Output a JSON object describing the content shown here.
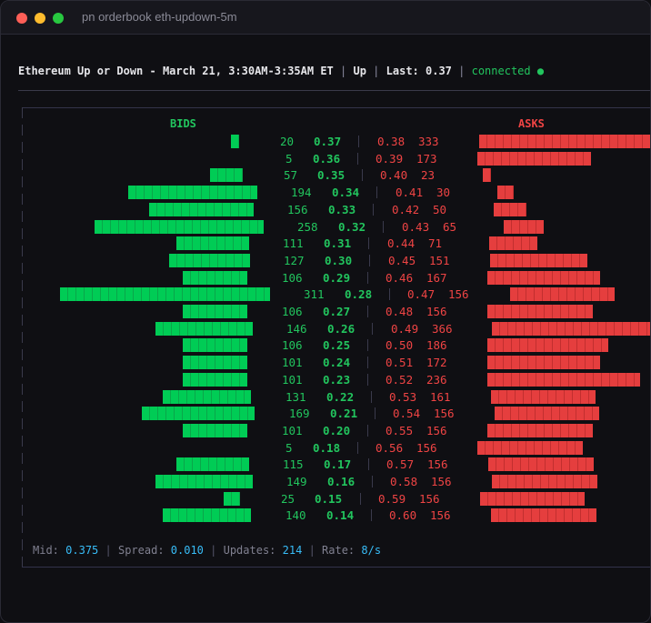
{
  "window": {
    "title": "pn orderbook eth-updown-5m",
    "controls": [
      "close",
      "minimize",
      "maximize"
    ]
  },
  "header": {
    "market": "Ethereum Up or Down - March 21, 3:30AM-3:35AM ET",
    "outcome": "Up",
    "last_label": "Last:",
    "last_value": "0.37",
    "status": "connected",
    "status_icon": "●"
  },
  "book": {
    "bids_label": "BIDS",
    "asks_label": "ASKS",
    "colors": {
      "bid": "#00cc55",
      "ask": "#e53e3e"
    },
    "rows": [
      {
        "bid_size": "20",
        "bid_price": "0.37",
        "ask_price": "0.38",
        "ask_size": "333",
        "bid_bar": [
          253,
          262
        ],
        "ask_bar": [
          526,
          715
        ],
        "bsx": 307,
        "bpx": 344,
        "pipe": 393,
        "apx": 414,
        "asx": 459
      },
      {
        "bid_size": "5",
        "bid_price": "0.36",
        "ask_price": "0.39",
        "ask_size": "173",
        "bid_bar": null,
        "ask_bar": [
          524,
          649
        ],
        "bsx": 313,
        "bpx": 343,
        "pipe": 392,
        "apx": 412,
        "asx": 457
      },
      {
        "bid_size": "57",
        "bid_price": "0.35",
        "ask_price": "0.40",
        "ask_size": "23",
        "bid_bar": [
          230,
          266
        ],
        "ask_bar": [
          530,
          539
        ],
        "bsx": 311,
        "bpx": 348,
        "pipe": 397,
        "apx": 417,
        "asx": 462
      },
      {
        "bid_size": "194",
        "bid_price": "0.34",
        "ask_price": "0.41",
        "ask_size": "30",
        "bid_bar": [
          140,
          282
        ],
        "ask_bar": [
          546,
          564
        ],
        "bsx": 319,
        "bpx": 364,
        "pipe": 413,
        "apx": 434,
        "asx": 479
      },
      {
        "bid_size": "156",
        "bid_price": "0.33",
        "ask_price": "0.42",
        "ask_size": "50",
        "bid_bar": [
          163,
          278
        ],
        "ask_bar": [
          542,
          578
        ],
        "bsx": 315,
        "bpx": 360,
        "pipe": 409,
        "apx": 430,
        "asx": 475
      },
      {
        "bid_size": "258",
        "bid_price": "0.32",
        "ask_price": "0.43",
        "ask_size": "65",
        "bid_bar": [
          103,
          289
        ],
        "ask_bar": [
          553,
          597
        ],
        "bsx": 326,
        "bpx": 371,
        "pipe": 420,
        "apx": 441,
        "asx": 486
      },
      {
        "bid_size": "111",
        "bid_price": "0.31",
        "ask_price": "0.44",
        "ask_size": "71",
        "bid_bar": [
          193,
          273
        ],
        "ask_bar": [
          537,
          590
        ],
        "bsx": 310,
        "bpx": 355,
        "pipe": 404,
        "apx": 425,
        "asx": 470
      },
      {
        "bid_size": "127",
        "bid_price": "0.30",
        "ask_price": "0.45",
        "ask_size": "151",
        "bid_bar": [
          185,
          274
        ],
        "ask_bar": [
          538,
          645
        ],
        "bsx": 311,
        "bpx": 356,
        "pipe": 405,
        "apx": 426,
        "asx": 471
      },
      {
        "bid_size": "106",
        "bid_price": "0.29",
        "ask_price": "0.46",
        "ask_size": "167",
        "bid_bar": [
          200,
          271
        ],
        "ask_bar": [
          535,
          659
        ],
        "bsx": 309,
        "bpx": 354,
        "pipe": 403,
        "apx": 423,
        "asx": 468
      },
      {
        "bid_size": "311",
        "bid_price": "0.28",
        "ask_price": "0.47",
        "ask_size": "156",
        "bid_bar": [
          65,
          296
        ],
        "ask_bar": [
          560,
          675
        ],
        "bsx": 333,
        "bpx": 378,
        "pipe": 427,
        "apx": 447,
        "asx": 492
      },
      {
        "bid_size": "106",
        "bid_price": "0.27",
        "ask_price": "0.48",
        "ask_size": "156",
        "bid_bar": [
          200,
          271
        ],
        "ask_bar": [
          535,
          651
        ],
        "bsx": 309,
        "bpx": 354,
        "pipe": 403,
        "apx": 423,
        "asx": 468
      },
      {
        "bid_size": "146",
        "bid_price": "0.26",
        "ask_price": "0.49",
        "ask_size": "366",
        "bid_bar": [
          170,
          277
        ],
        "ask_bar": [
          540,
          715
        ],
        "bsx": 314,
        "bpx": 359,
        "pipe": 408,
        "apx": 429,
        "asx": 474
      },
      {
        "bid_size": "106",
        "bid_price": "0.25",
        "ask_price": "0.50",
        "ask_size": "186",
        "bid_bar": [
          200,
          271
        ],
        "ask_bar": [
          535,
          668
        ],
        "bsx": 309,
        "bpx": 354,
        "pipe": 403,
        "apx": 423,
        "asx": 468
      },
      {
        "bid_size": "101",
        "bid_price": "0.24",
        "ask_price": "0.51",
        "ask_size": "172",
        "bid_bar": [
          200,
          271
        ],
        "ask_bar": [
          535,
          659
        ],
        "bsx": 309,
        "bpx": 354,
        "pipe": 403,
        "apx": 423,
        "asx": 468
      },
      {
        "bid_size": "101",
        "bid_price": "0.23",
        "ask_price": "0.52",
        "ask_size": "236",
        "bid_bar": [
          200,
          271
        ],
        "ask_bar": [
          535,
          703
        ],
        "bsx": 309,
        "bpx": 354,
        "pipe": 403,
        "apx": 423,
        "asx": 468
      },
      {
        "bid_size": "131",
        "bid_price": "0.22",
        "ask_price": "0.53",
        "ask_size": "161",
        "bid_bar": [
          178,
          275
        ],
        "ask_bar": [
          539,
          654
        ],
        "bsx": 313,
        "bpx": 358,
        "pipe": 407,
        "apx": 427,
        "asx": 472
      },
      {
        "bid_size": "169",
        "bid_price": "0.21",
        "ask_price": "0.54",
        "ask_size": "156",
        "bid_bar": [
          155,
          279
        ],
        "ask_bar": [
          543,
          658
        ],
        "bsx": 317,
        "bpx": 362,
        "pipe": 411,
        "apx": 431,
        "asx": 476
      },
      {
        "bid_size": "101",
        "bid_price": "0.20",
        "ask_price": "0.55",
        "ask_size": "156",
        "bid_bar": [
          200,
          271
        ],
        "ask_bar": [
          535,
          651
        ],
        "bsx": 309,
        "bpx": 354,
        "pipe": 403,
        "apx": 423,
        "asx": 468
      },
      {
        "bid_size": "5",
        "bid_price": "0.18",
        "ask_price": "0.56",
        "ask_size": "156",
        "bid_bar": null,
        "ask_bar": [
          524,
          640
        ],
        "bsx": 313,
        "bpx": 343,
        "pipe": 392,
        "apx": 412,
        "asx": 457
      },
      {
        "bid_size": "115",
        "bid_price": "0.17",
        "ask_price": "0.57",
        "ask_size": "156",
        "bid_bar": [
          193,
          273
        ],
        "ask_bar": [
          536,
          652
        ],
        "bsx": 310,
        "bpx": 355,
        "pipe": 404,
        "apx": 424,
        "asx": 469
      },
      {
        "bid_size": "149",
        "bid_price": "0.16",
        "ask_price": "0.58",
        "ask_size": "156",
        "bid_bar": [
          170,
          277
        ],
        "ask_bar": [
          540,
          656
        ],
        "bsx": 314,
        "bpx": 359,
        "pipe": 408,
        "apx": 428,
        "asx": 473
      },
      {
        "bid_size": "25",
        "bid_price": "0.15",
        "ask_price": "0.59",
        "ask_size": "156",
        "bid_bar": [
          245,
          263
        ],
        "ask_bar": [
          527,
          642
        ],
        "bsx": 308,
        "bpx": 345,
        "pipe": 395,
        "apx": 415,
        "asx": 460
      },
      {
        "bid_size": "140",
        "bid_price": "0.14",
        "ask_price": "0.60",
        "ask_size": "156",
        "bid_bar": [
          178,
          275
        ],
        "ask_bar": [
          539,
          655
        ],
        "bsx": 313,
        "bpx": 358,
        "pipe": 407,
        "apx": 427,
        "asx": 472
      }
    ]
  },
  "footer": {
    "mid_label": "Mid:",
    "mid_value": "0.375",
    "spread_label": "Spread:",
    "spread_value": "0.010",
    "updates_label": "Updates:",
    "updates_value": "214",
    "rate_label": "Rate:",
    "rate_value": "8/s"
  }
}
